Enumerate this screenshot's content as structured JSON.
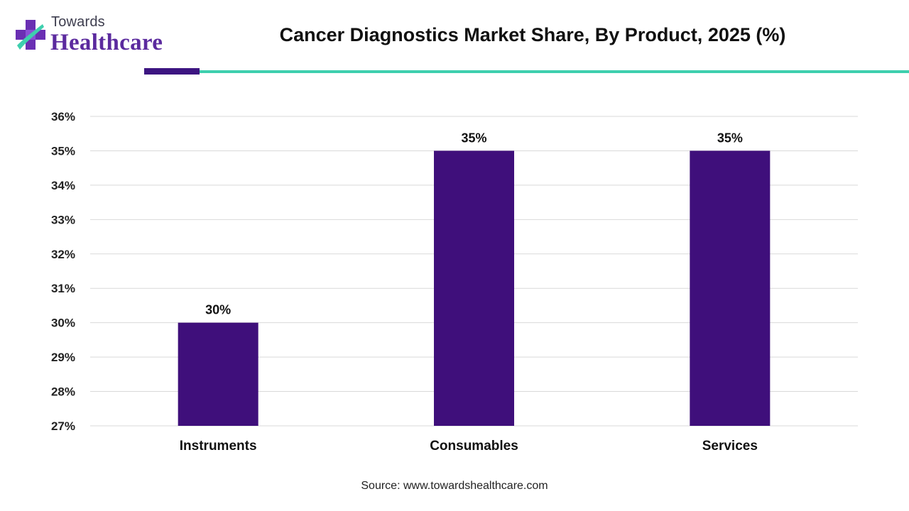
{
  "header": {
    "logo_small": "Towards",
    "logo_big": "Healthcare",
    "title": "Cancer Diagnostics Market Share, By Product, 2025 (%)"
  },
  "colors": {
    "bar": "#3f0f7b",
    "grid": "#d9d9d9",
    "accent_dark": "#3d1581",
    "accent_teal": "#3ecfae"
  },
  "chart_data": {
    "type": "bar",
    "title": "Cancer Diagnostics Market Share, By Product, 2025 (%)",
    "categories": [
      "Instruments",
      "Consumables",
      "Services"
    ],
    "values": [
      30,
      35,
      35
    ],
    "value_labels": [
      "30%",
      "35%",
      "35%"
    ],
    "ylim": [
      27,
      36
    ],
    "yticks": [
      27,
      28,
      29,
      30,
      31,
      32,
      33,
      34,
      35,
      36
    ],
    "ytick_labels": [
      "27%",
      "28%",
      "29%",
      "30%",
      "31%",
      "32%",
      "33%",
      "34%",
      "35%",
      "36%"
    ],
    "xlabel": "",
    "ylabel": "",
    "grid": true,
    "legend": "none"
  },
  "footer": {
    "source": "Source: www.towardshealthcare.com"
  }
}
